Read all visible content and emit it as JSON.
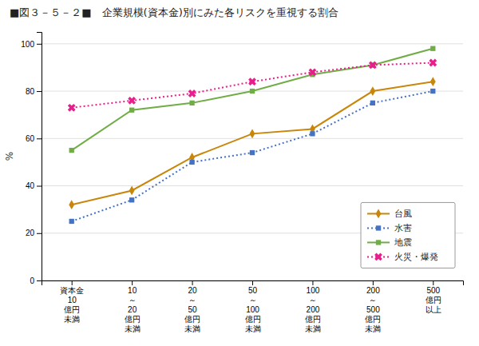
{
  "chart_data": {
    "type": "line",
    "title": "■図３－５－２■　企業規模(資本金)別にみた各リスクを重視する割合",
    "ylabel": "%",
    "categories": [
      "資本金\n10\n億円\n未満",
      "10\n～\n20\n億円\n未満",
      "20\n～\n50\n億円\n未満",
      "50\n～\n100\n億円\n未満",
      "100\n～\n200\n億円\n未満",
      "200\n～\n500\n億円\n未満",
      "500\n億円\n以上"
    ],
    "series": [
      {
        "name": "台風",
        "color": "#c8860a",
        "values": [
          32,
          38,
          52,
          62,
          64,
          80,
          84
        ],
        "marker": "diamond",
        "line_style": "solid"
      },
      {
        "name": "水害",
        "color": "#4472c4",
        "values": [
          25,
          34,
          50,
          54,
          62,
          75,
          80
        ],
        "marker": "square",
        "line_style": "dotted"
      },
      {
        "name": "地震",
        "color": "#70ad47",
        "values": [
          55,
          72,
          75,
          80,
          87,
          91,
          98
        ],
        "marker": "square",
        "line_style": "solid"
      },
      {
        "name": "火災・爆発",
        "color": "#e91e8c",
        "values": [
          73,
          76,
          79,
          84,
          88,
          91,
          92
        ],
        "marker": "x",
        "line_style": "dotted"
      }
    ],
    "ylim": [
      0,
      105
    ],
    "yticks": [
      0,
      20,
      40,
      60,
      80,
      100
    ],
    "grid": true,
    "legend": "lower right"
  }
}
